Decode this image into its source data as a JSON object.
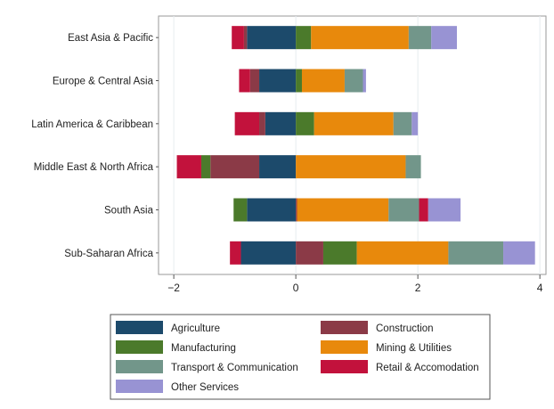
{
  "chart_data": {
    "type": "bar",
    "orientation": "horizontal",
    "stacked": true,
    "diverging": true,
    "title": "",
    "xlabel": "",
    "ylabel": "",
    "xlim": [
      -2.25,
      4.1
    ],
    "xticks": [
      -2,
      0,
      2,
      4
    ],
    "grid": true,
    "legend_position": "bottom",
    "categories": [
      "East Asia & Pacific",
      "Europe & Central Asia",
      "Latin America & Caribbean",
      "Middle East & North Africa",
      "South Asia",
      "Sub-Saharan Africa"
    ],
    "series": [
      {
        "name": "Agriculture",
        "color": "#1c4a6b",
        "values": [
          -0.8,
          -0.6,
          -0.5,
          -0.6,
          -0.8,
          -0.9
        ]
      },
      {
        "name": "Construction",
        "color": "#8b3a47",
        "values": [
          -0.05,
          -0.15,
          -0.1,
          -0.8,
          0.02,
          0.45
        ]
      },
      {
        "name": "Manufacturing",
        "color": "#4b7a2b",
        "values": [
          0.25,
          0.1,
          0.3,
          -0.15,
          -0.22,
          0.55
        ]
      },
      {
        "name": "Mining & Utilities",
        "color": "#e8890c",
        "values": [
          1.6,
          0.7,
          1.3,
          1.8,
          1.5,
          1.5
        ]
      },
      {
        "name": "Transport & Communication",
        "color": "#72968a",
        "values": [
          0.37,
          0.3,
          0.3,
          0.25,
          0.5,
          0.9
        ]
      },
      {
        "name": "Retail & Accomodation",
        "color": "#c2123c",
        "values": [
          -0.2,
          -0.18,
          -0.4,
          -0.4,
          0.15,
          -0.18
        ]
      },
      {
        "name": "Other Services",
        "color": "#9893d3",
        "values": [
          0.42,
          0.05,
          0.1,
          0.0,
          0.53,
          0.52
        ]
      }
    ]
  }
}
